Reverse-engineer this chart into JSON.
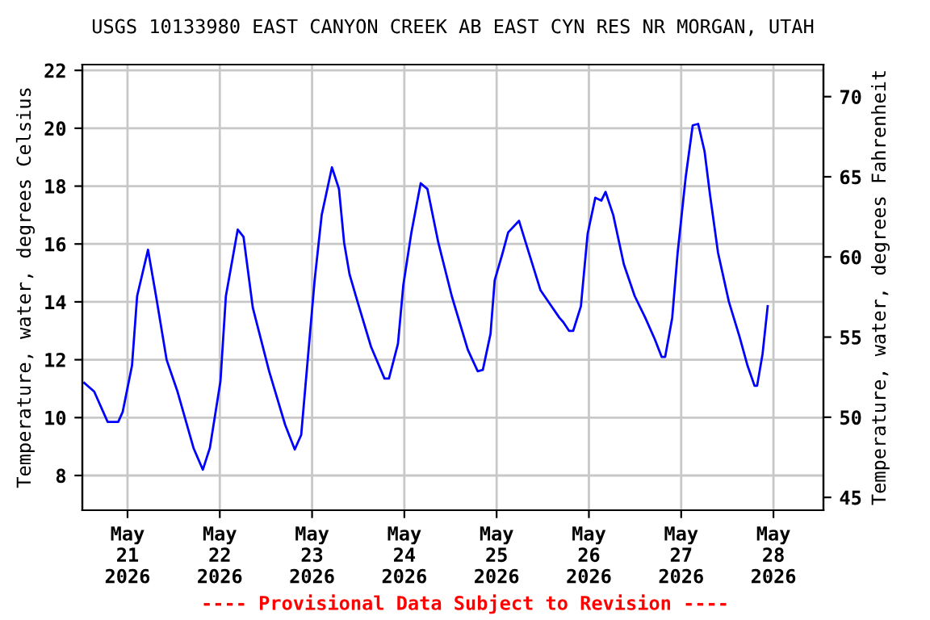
{
  "chart_data": {
    "type": "line",
    "title": "USGS 10133980 EAST CANYON CREEK AB EAST CYN RES NR MORGAN, UTAH",
    "ylabel": "Temperature, water, degrees Celsius",
    "y2label": "Temperature, water, degrees Fahrenheit",
    "annotations": [
      "---- Provisional Data Subject to Revision ----"
    ],
    "x": [
      "2026-05-20T12:45",
      "2026-05-20T15:20",
      "2026-05-20T18:50",
      "2026-05-20T21:35",
      "2026-05-20T22:45",
      "2026-05-21T01:10",
      "2026-05-21T02:30",
      "2026-05-21T05:20",
      "2026-05-21T07:25",
      "2026-05-21T10:10",
      "2026-05-21T13:00",
      "2026-05-21T17:10",
      "2026-05-21T19:35",
      "2026-05-21T21:25",
      "2026-05-22T00:10",
      "2026-05-22T01:35",
      "2026-05-22T04:40",
      "2026-05-22T06:10",
      "2026-05-22T08:35",
      "2026-05-22T12:50",
      "2026-05-22T17:00",
      "2026-05-22T19:30",
      "2026-05-22T21:10",
      "2026-05-23T00:40",
      "2026-05-23T02:30",
      "2026-05-23T05:10",
      "2026-05-23T07:00",
      "2026-05-23T08:20",
      "2026-05-23T09:45",
      "2026-05-23T11:50",
      "2026-05-23T15:20",
      "2026-05-23T18:50",
      "2026-05-23T20:00",
      "2026-05-23T22:20",
      "2026-05-23T23:45",
      "2026-05-24T01:50",
      "2026-05-24T04:15",
      "2026-05-24T06:00",
      "2026-05-24T08:50",
      "2026-05-24T12:20",
      "2026-05-24T16:30",
      "2026-05-24T19:05",
      "2026-05-24T20:25",
      "2026-05-24T22:25",
      "2026-05-24T23:30",
      "2026-05-25T01:35",
      "2026-05-25T03:00",
      "2026-05-25T05:50",
      "2026-05-25T07:55",
      "2026-05-25T11:25",
      "2026-05-25T13:30",
      "2026-05-25T16:20",
      "2026-05-25T17:20",
      "2026-05-25T18:50",
      "2026-05-25T19:55",
      "2026-05-25T21:55",
      "2026-05-25T23:40",
      "2026-05-26T01:40",
      "2026-05-26T03:15",
      "2026-05-26T04:20",
      "2026-05-26T06:20",
      "2026-05-26T09:05",
      "2026-05-26T11:55",
      "2026-05-26T14:40",
      "2026-05-26T17:10",
      "2026-05-26T18:55",
      "2026-05-26T19:50",
      "2026-05-26T21:40",
      "2026-05-26T23:05",
      "2026-05-27T01:10",
      "2026-05-27T03:00",
      "2026-05-27T04:25",
      "2026-05-27T06:05",
      "2026-05-27T07:30",
      "2026-05-27T09:35",
      "2026-05-27T12:25",
      "2026-05-27T15:10",
      "2026-05-27T17:15",
      "2026-05-27T19:05",
      "2026-05-27T19:45",
      "2026-05-27T21:10",
      "2026-05-27T22:30"
    ],
    "series": [
      {
        "color": "#0000ff",
        "values": [
          11.2,
          10.9,
          9.85,
          9.85,
          10.2,
          11.8,
          14.2,
          15.8,
          14.2,
          12.0,
          10.9,
          8.95,
          8.2,
          8.95,
          11.25,
          14.2,
          16.5,
          16.25,
          13.8,
          11.6,
          9.75,
          8.9,
          9.4,
          14.75,
          17.0,
          18.65,
          17.9,
          16.05,
          14.95,
          14.0,
          12.45,
          11.35,
          11.35,
          12.55,
          14.6,
          16.4,
          18.1,
          17.9,
          16.05,
          14.2,
          12.35,
          11.6,
          11.65,
          12.9,
          14.75,
          15.7,
          16.4,
          16.8,
          15.9,
          14.4,
          14.0,
          13.45,
          13.3,
          13.0,
          13.0,
          13.85,
          16.35,
          17.6,
          17.5,
          17.8,
          17.0,
          15.3,
          14.2,
          13.45,
          12.7,
          12.1,
          12.1,
          13.45,
          15.7,
          18.3,
          20.1,
          20.15,
          19.2,
          17.7,
          15.7,
          14.0,
          12.8,
          11.8,
          11.1,
          11.1,
          12.2,
          13.85
        ]
      }
    ],
    "xlim": [
      "2026-05-20T12:15",
      "2026-05-28T13:00"
    ],
    "xticks": [
      {
        "value": "2026-05-21",
        "label": "May\n21\n2026"
      },
      {
        "value": "2026-05-22",
        "label": "May\n22\n2026"
      },
      {
        "value": "2026-05-23",
        "label": "May\n23\n2026"
      },
      {
        "value": "2026-05-24",
        "label": "May\n24\n2026"
      },
      {
        "value": "2026-05-25",
        "label": "May\n25\n2026"
      },
      {
        "value": "2026-05-26",
        "label": "May\n26\n2026"
      },
      {
        "value": "2026-05-27",
        "label": "May\n27\n2026"
      },
      {
        "value": "2026-05-28",
        "label": "May\n28\n2026"
      }
    ],
    "ylim": [
      6.8,
      22.2
    ],
    "yticks": [
      8,
      10,
      12,
      14,
      16,
      18,
      20,
      22
    ],
    "y2lim": [
      44.2,
      72.0
    ],
    "y2ticks": [
      45,
      50,
      55,
      60,
      65,
      70
    ],
    "grid": true,
    "line_style": "solid",
    "marker": "none"
  }
}
